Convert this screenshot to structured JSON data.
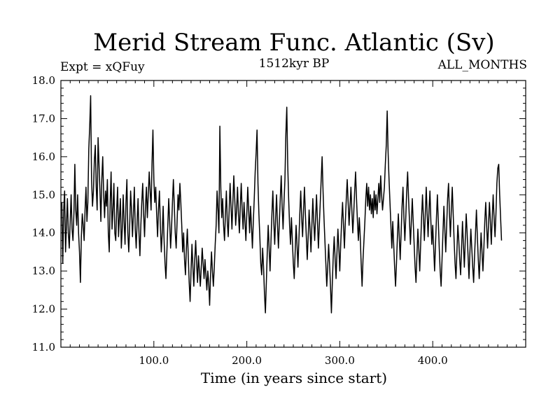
{
  "chart_data": {
    "type": "line",
    "title": "Merid Stream Func. Atlantic (Sv)",
    "subtitle_left": "Expt = xQFuy",
    "subtitle_center": "1512kyr BP",
    "subtitle_right": "ALL_MONTHS",
    "xlabel": "Time (in years since start)",
    "ylabel": "",
    "xlim": [
      0,
      500
    ],
    "ylim": [
      11.0,
      18.0
    ],
    "xticks": [
      100,
      200,
      300,
      400
    ],
    "xtick_labels": [
      "100.0",
      "200.0",
      "300.0",
      "400.0"
    ],
    "yticks": [
      11,
      12,
      13,
      14,
      15,
      16,
      17,
      18
    ],
    "ytick_labels": [
      "11.0",
      "12.0",
      "13.0",
      "14.0",
      "15.0",
      "16.0",
      "17.0",
      "18.0"
    ],
    "grid": false,
    "line_color": "#000000",
    "series": [
      {
        "name": "Merid Stream Func. Atlantic",
        "x_start": 1,
        "x_step": 1,
        "values": [
          14.8,
          13.2,
          14.6,
          15.1,
          13.5,
          14.2,
          14.9,
          14.0,
          13.6,
          14.3,
          15.0,
          14.1,
          13.8,
          14.5,
          15.8,
          14.6,
          14.2,
          15.0,
          14.0,
          13.5,
          12.7,
          13.9,
          14.5,
          14.2,
          13.8,
          14.6,
          15.2,
          14.3,
          14.8,
          16.2,
          16.8,
          17.6,
          15.4,
          14.7,
          15.1,
          15.9,
          16.3,
          15.2,
          14.6,
          16.5,
          15.8,
          15.1,
          14.3,
          15.4,
          16.0,
          15.0,
          14.4,
          15.1,
          14.7,
          15.4,
          14.0,
          13.5,
          14.8,
          15.6,
          14.1,
          14.6,
          15.3,
          14.0,
          13.8,
          14.6,
          15.2,
          13.9,
          14.4,
          14.9,
          13.6,
          14.1,
          15.0,
          14.3,
          13.7,
          14.8,
          15.4,
          14.0,
          13.5,
          14.2,
          15.1,
          14.6,
          13.9,
          14.5,
          15.2,
          14.1,
          13.6,
          14.3,
          14.9,
          14.0,
          13.4,
          14.2,
          14.8,
          15.3,
          14.5,
          13.9,
          14.7,
          15.2,
          14.4,
          15.0,
          15.6,
          15.1,
          14.6,
          15.8,
          16.7,
          15.4,
          14.8,
          15.2,
          14.5,
          13.9,
          14.6,
          15.1,
          14.2,
          13.5,
          14.0,
          14.7,
          13.8,
          13.2,
          12.8,
          13.5,
          14.2,
          14.9,
          14.3,
          13.6,
          14.1,
          14.8,
          15.4,
          14.7,
          14.0,
          13.6,
          14.3,
          15.0,
          14.6,
          15.3,
          14.8,
          14.2,
          13.5,
          14.0,
          13.3,
          12.9,
          13.6,
          14.1,
          13.4,
          12.7,
          12.2,
          13.0,
          13.7,
          13.1,
          12.6,
          13.3,
          13.8,
          13.2,
          12.7,
          13.4,
          13.0,
          12.6,
          13.1,
          13.6,
          13.2,
          12.8,
          13.3,
          12.9,
          12.5,
          13.0,
          12.7,
          12.1,
          12.9,
          13.5,
          13.0,
          12.6,
          13.1,
          13.7,
          14.2,
          15.1,
          14.6,
          14.0,
          16.8,
          15.2,
          14.4,
          14.9,
          14.2,
          13.8,
          14.5,
          15.1,
          14.3,
          13.9,
          14.6,
          15.3,
          14.7,
          14.1,
          14.8,
          15.5,
          14.9,
          14.2,
          14.6,
          15.2,
          14.5,
          14.0,
          14.7,
          15.3,
          14.6,
          14.1,
          14.8,
          14.3,
          13.8,
          14.5,
          15.2,
          14.6,
          14.0,
          14.7,
          14.2,
          13.6,
          14.3,
          14.9,
          15.6,
          16.1,
          16.7,
          15.3,
          14.5,
          13.9,
          13.2,
          12.9,
          13.6,
          13.1,
          12.4,
          11.9,
          12.7,
          13.5,
          14.2,
          13.6,
          13.0,
          13.8,
          14.5,
          15.1,
          14.3,
          13.7,
          14.4,
          15.0,
          14.2,
          13.6,
          14.3,
          14.9,
          15.5,
          14.7,
          14.1,
          14.8,
          15.4,
          16.6,
          17.3,
          15.8,
          14.9,
          14.2,
          13.7,
          14.4,
          13.8,
          13.2,
          12.8,
          13.5,
          14.2,
          13.7,
          13.1,
          13.8,
          14.5,
          15.1,
          14.4,
          13.9,
          14.6,
          15.2,
          14.5,
          13.9,
          13.3,
          13.9,
          14.6,
          14.1,
          13.5,
          14.2,
          14.9,
          14.3,
          13.8,
          14.4,
          15.0,
          14.3,
          13.6,
          14.2,
          14.8,
          15.4,
          16.0,
          15.1,
          14.4,
          13.8,
          13.2,
          12.6,
          13.1,
          13.7,
          13.2,
          12.6,
          11.9,
          12.7,
          13.4,
          13.9,
          13.3,
          12.8,
          13.5,
          14.1,
          13.6,
          13.0,
          13.7,
          14.3,
          14.8,
          14.2,
          13.6,
          14.3,
          14.9,
          15.4,
          14.8,
          14.2,
          14.7,
          15.2,
          14.6,
          14.0,
          14.5,
          15.1,
          15.6,
          14.9,
          14.3,
          13.8,
          14.4,
          13.9,
          13.2,
          12.6,
          13.3,
          13.8,
          14.3,
          14.9,
          15.3,
          14.7,
          15.2,
          14.6,
          15.0,
          14.5,
          14.9,
          14.4,
          15.1,
          14.6,
          15.0,
          14.5,
          14.9,
          15.3,
          14.8,
          15.5,
          15.0,
          14.6,
          14.9,
          15.2,
          15.8,
          16.3,
          17.2,
          16.1,
          15.4,
          14.8,
          14.2,
          13.6,
          14.3,
          13.7,
          13.1,
          12.6,
          13.2,
          13.9,
          14.5,
          13.9,
          13.3,
          14.0,
          14.7,
          15.2,
          14.4,
          13.8,
          14.4,
          15.1,
          15.6,
          14.9,
          14.3,
          13.7,
          14.3,
          14.9,
          14.3,
          13.7,
          13.1,
          12.7,
          13.4,
          14.1,
          13.6,
          13.0,
          13.7,
          14.4,
          15.0,
          14.4,
          13.8,
          14.5,
          15.2,
          14.5,
          13.9,
          14.6,
          15.1,
          14.3,
          13.7,
          14.2,
          13.6,
          13.0,
          13.7,
          14.4,
          15.0,
          14.3,
          13.6,
          13.0,
          12.6,
          13.3,
          14.0,
          14.7,
          14.1,
          13.5,
          14.2,
          14.9,
          15.3,
          14.5,
          13.9,
          14.6,
          15.2,
          14.5,
          13.8,
          13.2,
          12.8,
          13.5,
          14.2,
          13.8,
          13.3,
          12.9,
          13.6,
          14.3,
          13.7,
          13.1,
          13.8,
          14.5,
          14.0,
          13.4,
          12.8,
          13.5,
          14.1,
          13.6,
          13.1,
          12.7,
          13.4,
          14.0,
          14.6,
          13.9,
          13.3,
          12.8,
          13.4,
          14.0,
          13.5,
          13.0,
          13.6,
          14.3,
          14.8,
          14.2,
          13.6,
          14.2,
          14.8,
          14.3,
          13.7,
          14.4,
          15.0,
          14.4,
          13.9,
          14.5,
          15.3,
          15.7,
          15.8,
          15.0,
          14.4,
          13.8
        ]
      }
    ]
  }
}
